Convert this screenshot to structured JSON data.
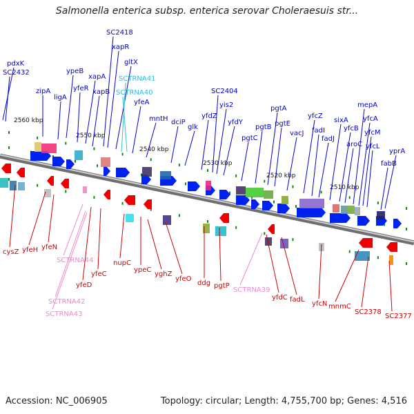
{
  "title": "Salmonella enterica subsp. enterica serovar Choleraesuis str...",
  "footer": {
    "accession": "Accession: NC_006905",
    "topology": "Topology: circular; Length: 4,755,700 bp; Genes: 4,516"
  },
  "scale_labels": [
    "2560 kbp",
    "2550 kbp",
    "2540 kbp",
    "2530 kbp",
    "2520 kbp",
    "2510 kbp"
  ],
  "top_labels": [
    {
      "text": "pdxK",
      "color": "#0000cc"
    },
    {
      "text": "SC2432",
      "color": "#0000cc"
    },
    {
      "text": "zipA",
      "color": "#0000cc"
    },
    {
      "text": "ligA",
      "color": "#0000cc"
    },
    {
      "text": "ypeB",
      "color": "#0000cc"
    },
    {
      "text": "yfeR",
      "color": "#0000cc"
    },
    {
      "text": "xapA",
      "color": "#0000cc"
    },
    {
      "text": "xapB",
      "color": "#0000cc"
    },
    {
      "text": "SC2418",
      "color": "#0000cc"
    },
    {
      "text": "xapR",
      "color": "#0000cc"
    },
    {
      "text": "gltX",
      "color": "#0000cc"
    },
    {
      "text": "SCTRNA41",
      "color": "#33bbdd"
    },
    {
      "text": "SCTRNA40",
      "color": "#33bbdd"
    },
    {
      "text": "yfeA",
      "color": "#0000cc"
    },
    {
      "text": "mntH",
      "color": "#0000cc"
    },
    {
      "text": "dciP",
      "color": "#0000cc"
    },
    {
      "text": "glk",
      "color": "#0000cc"
    },
    {
      "text": "yfdZ",
      "color": "#0000cc"
    },
    {
      "text": "SC2404",
      "color": "#0000cc"
    },
    {
      "text": "yis2",
      "color": "#0000cc"
    },
    {
      "text": "yfdY",
      "color": "#0000cc"
    },
    {
      "text": "pgtC",
      "color": "#0000cc"
    },
    {
      "text": "pgtB",
      "color": "#0000cc"
    },
    {
      "text": "pgtA",
      "color": "#0000cc"
    },
    {
      "text": "pgtE",
      "color": "#0000cc"
    },
    {
      "text": "vacJ",
      "color": "#0000cc"
    },
    {
      "text": "yfcZ",
      "color": "#0000cc"
    },
    {
      "text": "fadI",
      "color": "#0000cc"
    },
    {
      "text": "fadJ",
      "color": "#0000cc"
    },
    {
      "text": "sixA",
      "color": "#0000cc"
    },
    {
      "text": "yfcB",
      "color": "#0000cc"
    },
    {
      "text": "aroC",
      "color": "#0000cc"
    },
    {
      "text": "mepA",
      "color": "#0000cc"
    },
    {
      "text": "yfcA",
      "color": "#0000cc"
    },
    {
      "text": "yfcM",
      "color": "#0000cc"
    },
    {
      "text": "yfcL",
      "color": "#0000cc"
    },
    {
      "text": "yprA",
      "color": "#0000cc"
    },
    {
      "text": "fabB",
      "color": "#0000cc"
    }
  ],
  "bottom_labels": [
    {
      "text": "cysZ",
      "color": "#cc0000"
    },
    {
      "text": "yfeH",
      "color": "#cc0000"
    },
    {
      "text": "yfeN",
      "color": "#cc0000"
    },
    {
      "text": "SCTRNA44",
      "color": "#ee88cc"
    },
    {
      "text": "yfeD",
      "color": "#cc0000"
    },
    {
      "text": "yfeC",
      "color": "#cc0000"
    },
    {
      "text": "SCTRNA42",
      "color": "#ee88cc"
    },
    {
      "text": "SCTRNA43",
      "color": "#ee88cc"
    },
    {
      "text": "nupC",
      "color": "#cc0000"
    },
    {
      "text": "ypeC",
      "color": "#cc0000"
    },
    {
      "text": "yghZ",
      "color": "#cc0000"
    },
    {
      "text": "yfeO",
      "color": "#cc0000"
    },
    {
      "text": "ddg",
      "color": "#cc0000"
    },
    {
      "text": "pgtP",
      "color": "#cc0000"
    },
    {
      "text": "SCTRNA39",
      "color": "#ee88cc"
    },
    {
      "text": "yfdC",
      "color": "#cc0000"
    },
    {
      "text": "fadL",
      "color": "#cc0000"
    },
    {
      "text": "yfcN",
      "color": "#cc0000"
    },
    {
      "text": "mnmC",
      "color": "#cc0000"
    },
    {
      "text": "SC2378",
      "color": "#cc0000"
    },
    {
      "text": "SC2377",
      "color": "#cc0000"
    }
  ],
  "colors": {
    "forward_gene": "#0022ee",
    "reverse_gene": "#ee0000",
    "trna_forward": "#33bbdd",
    "trna_reverse": "#ee88cc",
    "backbone": "#888888",
    "tick": "#118811"
  }
}
